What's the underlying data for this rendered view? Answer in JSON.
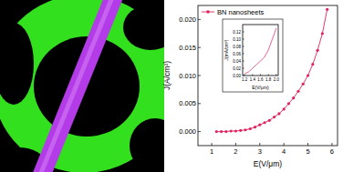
{
  "chart_data": [
    {
      "type": "line",
      "x_label": "E(V/μm)",
      "y_label": "J(A/cm²)",
      "x": [
        1.2,
        1.4,
        1.6,
        1.8,
        2.0,
        2.2,
        2.4,
        2.6,
        2.8,
        3.0,
        3.2,
        3.4,
        3.6,
        3.8,
        4.0,
        4.2,
        4.4,
        4.6,
        4.8,
        5.0,
        5.2,
        5.4,
        5.6,
        5.8
      ],
      "series": [
        {
          "name": "BN nanosheets",
          "color": "#e0245e",
          "marker": "circle",
          "line_style": "solid",
          "values": [
            0.0,
            0.0,
            0.0,
            0.0001,
            0.0001,
            0.0002,
            0.0003,
            0.0005,
            0.0008,
            0.0012,
            0.0016,
            0.002,
            0.0026,
            0.0032,
            0.004,
            0.005,
            0.006,
            0.0072,
            0.0085,
            0.01,
            0.012,
            0.0145,
            0.0175,
            0.0218
          ]
        }
      ],
      "xlim": [
        0.43,
        6.23
      ],
      "ylim": [
        -0.0025,
        0.0225
      ],
      "xticks": [
        1,
        2,
        3,
        4,
        5,
        6
      ],
      "yticks": [
        {
          "value": 0,
          "label": "0.000"
        },
        {
          "value": 0.005,
          "label": "0.005"
        },
        {
          "value": 0.01,
          "label": "0.010"
        },
        {
          "value": 0.015,
          "label": "0.015"
        },
        {
          "value": 0.02,
          "label": "0.020"
        }
      ],
      "grid": false,
      "legend": "upper left"
    },
    {
      "type": "line",
      "x_label": "E(V/μm)",
      "y_label": "J(mA/cm²)",
      "x": [
        1.2,
        1.3,
        1.4,
        1.5,
        1.6,
        1.7,
        1.8,
        1.9,
        2.0
      ],
      "series": [
        {
          "name": null,
          "color": "#e0245e",
          "line_style": "solid",
          "values": [
            0.005,
            0.01,
            0.02,
            0.03,
            0.04,
            0.05,
            0.07,
            0.1,
            0.13
          ]
        }
      ],
      "xlim": [
        1.15,
        2.05
      ],
      "ylim": [
        0,
        0.14
      ],
      "xticks": [
        1.2,
        1.4,
        1.6,
        1.8,
        {
          "value": 2,
          "label": "2.0"
        }
      ],
      "yticks": [
        {
          "value": 0,
          "label": "0.00"
        },
        0.02,
        0.04,
        0.06,
        0.08,
        {
          "value": 0.1,
          "label": "0.10"
        },
        0.12
      ],
      "grid": false
    }
  ]
}
